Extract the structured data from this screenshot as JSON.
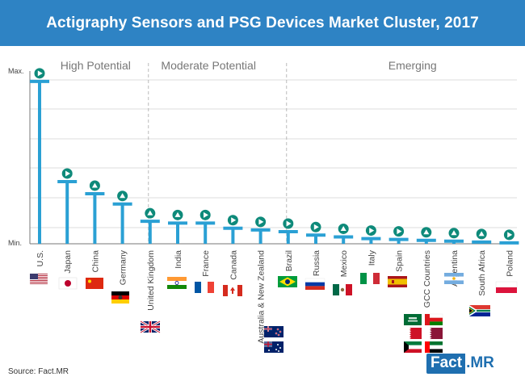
{
  "chart_data": {
    "type": "bar",
    "title": "Actigraphy Sensors and PSG Devices Market Cluster, 2017",
    "y_tick_labels": [
      "Max.",
      "Min."
    ],
    "ylim": [
      0,
      100
    ],
    "grid": true,
    "clusters": [
      {
        "name": "High Potential",
        "categories": [
          "U.S.",
          "Japan",
          "China",
          "Germany"
        ]
      },
      {
        "name": "Moderate Potential",
        "categories": [
          "United Kingdom",
          "India",
          "France",
          "Canada",
          "Australia & New Zealand"
        ]
      },
      {
        "name": "Emerging",
        "categories": [
          "Brazil",
          "Russia",
          "Mexico",
          "Italy",
          "Spain",
          "GCC Countries",
          "Argentina",
          "South Africa",
          "Poland"
        ]
      }
    ],
    "categories": [
      "U.S.",
      "Japan",
      "China",
      "Germany",
      "United Kingdom",
      "India",
      "France",
      "Canada",
      "Australia & New Zealand",
      "Brazil",
      "Russia",
      "Mexico",
      "Italy",
      "Spain",
      "GCC Countries",
      "Argentina",
      "South Africa",
      "Poland"
    ],
    "values": [
      94,
      36,
      29,
      23,
      13,
      12,
      12,
      9,
      8,
      7,
      5,
      4,
      3,
      2.5,
      2,
      1.5,
      1,
      0.5
    ],
    "markers": [
      "right",
      "right",
      "up",
      "up",
      "up",
      "up",
      "right",
      "right",
      "right",
      "right",
      "right",
      "up",
      "right",
      "right",
      "up",
      "up",
      "up",
      "right"
    ],
    "colors": {
      "title_bar": "#2e83c4",
      "stem": "#2aa0d4",
      "marker": "#0e8a7a",
      "text": "#555555",
      "grid": "#bbbbbb"
    }
  },
  "title": "Actigraphy Sensors and PSG Devices Market Cluster, 2017",
  "source": "Source: Fact.MR",
  "logo": {
    "part1": "Fact",
    "part2": ".MR"
  }
}
